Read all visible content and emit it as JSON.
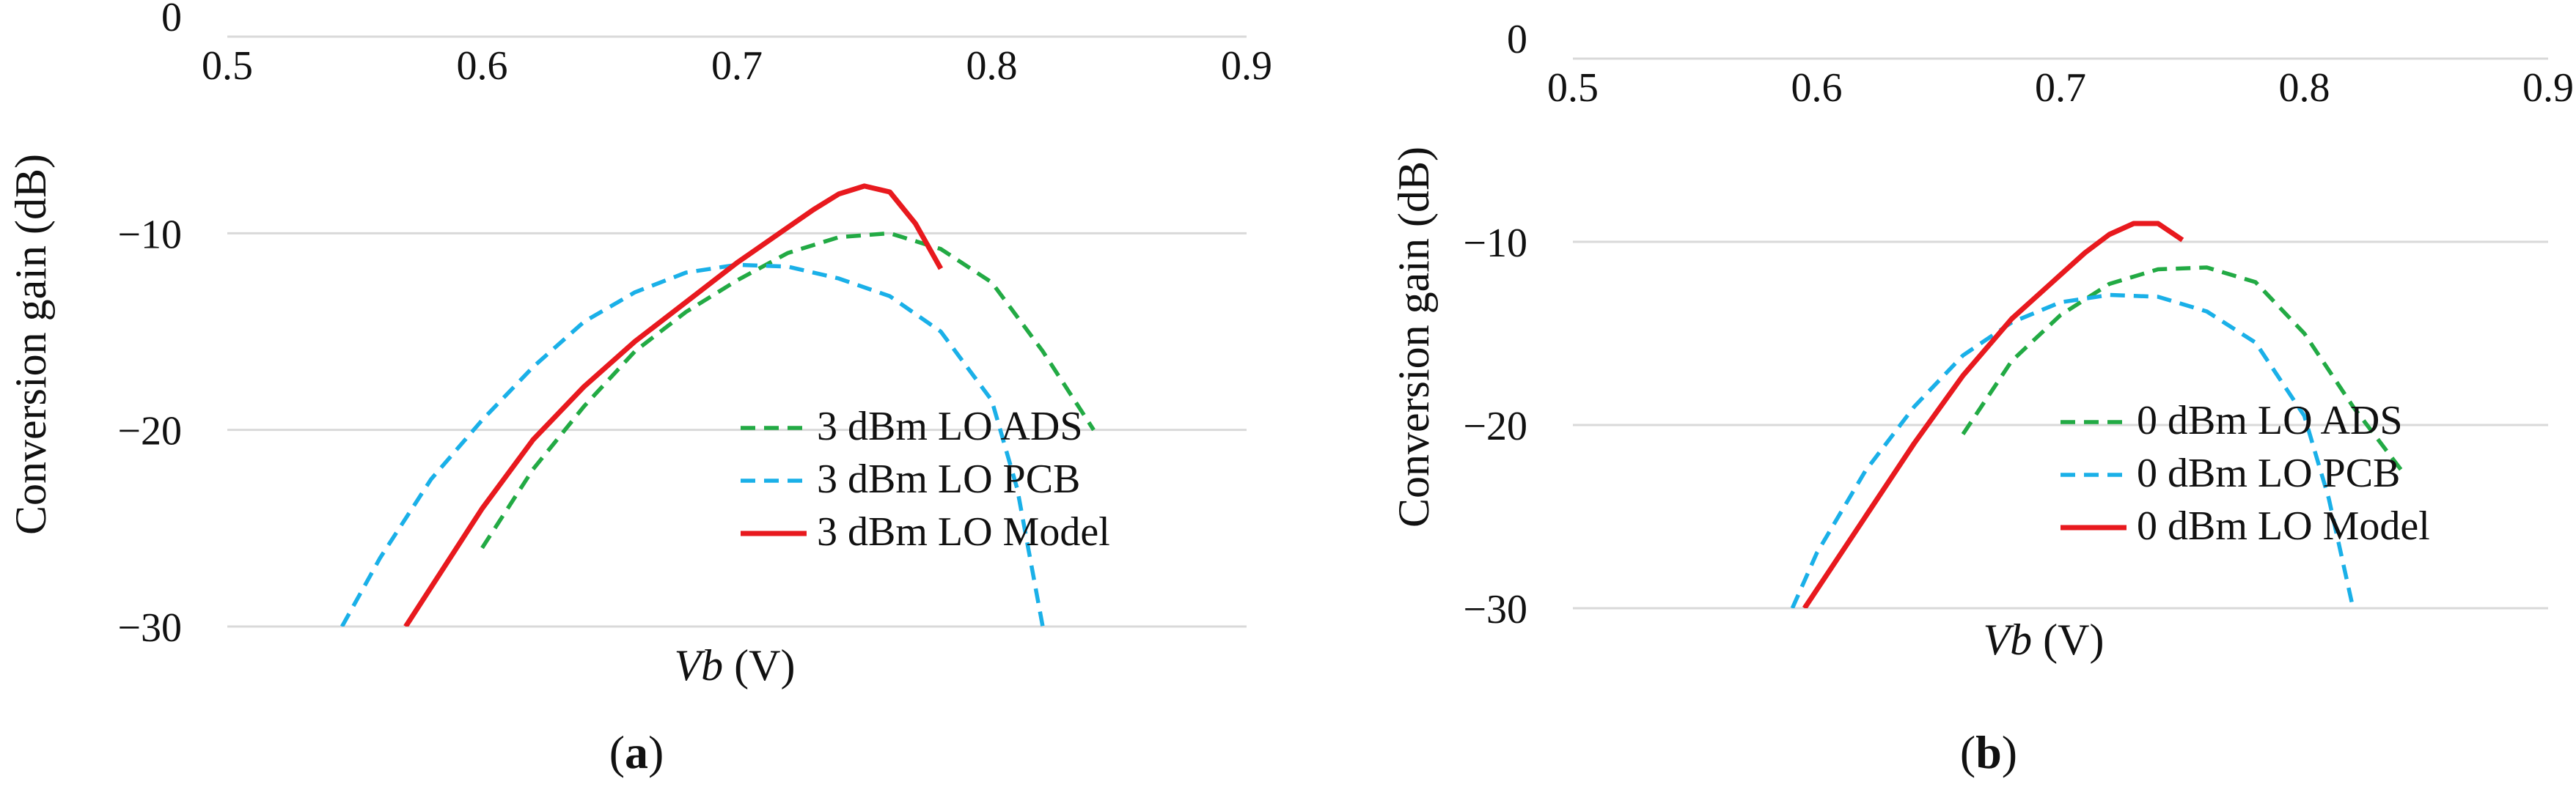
{
  "figure": {
    "panel_labels": [
      "a",
      "b"
    ]
  },
  "chart_data": [
    {
      "type": "line",
      "panel": "a",
      "title": "",
      "xlabel": "Vb",
      "xlabel_unit": " (V)",
      "ylabel": "Conversion gain (dB)",
      "xlim": [
        0.5,
        0.9
      ],
      "ylim": [
        -30,
        0
      ],
      "x_ticks": [
        "0.5",
        "0.6",
        "0.7",
        "0.8",
        "0.9"
      ],
      "y_ticks": [
        "0",
        "−10",
        "−20",
        "−30"
      ],
      "x_tick_values": [
        0.5,
        0.6,
        0.7,
        0.8,
        0.9
      ],
      "y_tick_values": [
        0,
        -10,
        -20,
        -30
      ],
      "grid": "horizontal",
      "x_axis_position": "top",
      "legend_position": "bottom-right",
      "series": [
        {
          "name": "3 dBm LO ADS",
          "color": "#22aa44",
          "style": "dashed",
          "x": [
            0.6,
            0.62,
            0.64,
            0.66,
            0.68,
            0.7,
            0.72,
            0.74,
            0.76,
            0.78,
            0.8,
            0.82,
            0.84
          ],
          "y": [
            -26.0,
            -22.0,
            -18.8,
            -16.0,
            -14.0,
            -12.4,
            -11.0,
            -10.2,
            -10.0,
            -10.8,
            -12.5,
            -16.0,
            -20.0
          ]
        },
        {
          "name": "3 dBm LO PCB",
          "color": "#1ab0e8",
          "style": "dashed",
          "x": [
            0.545,
            0.56,
            0.58,
            0.6,
            0.62,
            0.64,
            0.66,
            0.68,
            0.7,
            0.72,
            0.74,
            0.76,
            0.78,
            0.8,
            0.81,
            0.82
          ],
          "y": [
            -30.0,
            -26.5,
            -22.5,
            -19.5,
            -16.8,
            -14.5,
            -13.0,
            -12.0,
            -11.6,
            -11.7,
            -12.3,
            -13.2,
            -15.0,
            -18.5,
            -23.0,
            -30.0
          ]
        },
        {
          "name": "3 dBm LO Model",
          "color": "#e8191e",
          "style": "solid",
          "x": [
            0.57,
            0.6,
            0.62,
            0.64,
            0.66,
            0.68,
            0.7,
            0.72,
            0.73,
            0.74,
            0.75,
            0.76,
            0.77,
            0.78
          ],
          "y": [
            -30.0,
            -24.0,
            -20.5,
            -17.8,
            -15.5,
            -13.5,
            -11.5,
            -9.7,
            -8.8,
            -8.0,
            -7.6,
            -7.9,
            -9.5,
            -11.8
          ]
        }
      ]
    },
    {
      "type": "line",
      "panel": "b",
      "title": "",
      "xlabel": "Vb",
      "xlabel_unit": " (V)",
      "ylabel": "Conversion gain (dB)",
      "xlim": [
        0.5,
        0.9
      ],
      "ylim": [
        -30,
        0
      ],
      "x_ticks": [
        "0.5",
        "0.6",
        "0.7",
        "0.8",
        "0.9"
      ],
      "y_ticks": [
        "0",
        "−10",
        "−20",
        "−30"
      ],
      "x_tick_values": [
        0.5,
        0.6,
        0.7,
        0.8,
        0.9
      ],
      "y_tick_values": [
        0,
        -10,
        -20,
        -30
      ],
      "grid": "horizontal",
      "x_axis_position": "top",
      "legend_position": "bottom-right",
      "series": [
        {
          "name": "0 dBm LO ADS",
          "color": "#22aa44",
          "style": "dashed",
          "x": [
            0.66,
            0.68,
            0.7,
            0.72,
            0.74,
            0.76,
            0.78,
            0.8,
            0.82,
            0.84
          ],
          "y": [
            -20.5,
            -16.5,
            -14.0,
            -12.3,
            -11.5,
            -11.4,
            -12.2,
            -15.0,
            -19.0,
            -22.5
          ]
        },
        {
          "name": "0 dBm LO PCB",
          "color": "#1ab0e8",
          "style": "dashed",
          "x": [
            0.59,
            0.6,
            0.62,
            0.64,
            0.66,
            0.68,
            0.7,
            0.72,
            0.74,
            0.76,
            0.78,
            0.8,
            0.81,
            0.82
          ],
          "y": [
            -30.0,
            -27.0,
            -22.5,
            -19.0,
            -16.2,
            -14.4,
            -13.3,
            -12.9,
            -13.0,
            -13.8,
            -15.5,
            -19.5,
            -24.0,
            -30.0
          ]
        },
        {
          "name": "0 dBm LO Model",
          "color": "#e8191e",
          "style": "solid",
          "x": [
            0.595,
            0.62,
            0.64,
            0.66,
            0.68,
            0.7,
            0.71,
            0.72,
            0.73,
            0.74,
            0.75
          ],
          "y": [
            -30.0,
            -25.0,
            -21.0,
            -17.3,
            -14.2,
            -11.8,
            -10.6,
            -9.6,
            -9.0,
            -9.0,
            -9.9
          ]
        }
      ]
    }
  ]
}
